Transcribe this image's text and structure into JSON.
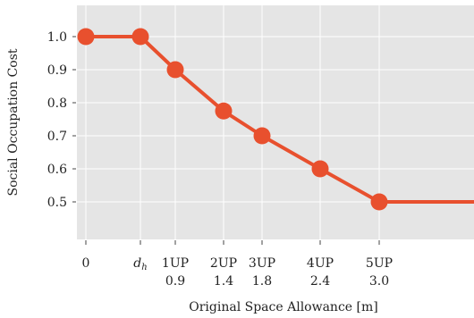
{
  "chart_data": {
    "type": "line",
    "title": "",
    "xlabel": "Original Space Allowance [m]",
    "ylabel": "Social Occupation Cost",
    "ylim": [
      0.4,
      1.1
    ],
    "grid": true,
    "legend": "none",
    "line_color": "#e8502e",
    "background_color": "#e5e5e5",
    "x_ticks": [
      {
        "value": 0.0,
        "label": "0",
        "sublabel": ""
      },
      {
        "value": 0.6,
        "label": "d_h",
        "sublabel": ""
      },
      {
        "value": 0.9,
        "label": "1UP",
        "sublabel": "0.9"
      },
      {
        "value": 1.4,
        "label": "2UP",
        "sublabel": "1.4"
      },
      {
        "value": 1.8,
        "label": "3UP",
        "sublabel": "1.8"
      },
      {
        "value": 2.4,
        "label": "4UP",
        "sublabel": "2.4"
      },
      {
        "value": 3.0,
        "label": "5UP",
        "sublabel": "3.0"
      }
    ],
    "y_ticks": [
      {
        "value": 0.5,
        "label": "0.5"
      },
      {
        "value": 0.6,
        "label": "0.6"
      },
      {
        "value": 0.7,
        "label": "0.7"
      },
      {
        "value": 0.8,
        "label": "0.8"
      },
      {
        "value": 0.9,
        "label": "0.9"
      },
      {
        "value": 1.0,
        "label": "1.0"
      }
    ],
    "series": [
      {
        "points": [
          {
            "x": 0.0,
            "y": 1.0
          },
          {
            "x": 0.6,
            "y": 1.0
          },
          {
            "x": 0.9,
            "y": 0.9
          },
          {
            "x": 1.4,
            "y": 0.775
          },
          {
            "x": 1.8,
            "y": 0.7
          },
          {
            "x": 2.4,
            "y": 0.6
          },
          {
            "x": 3.0,
            "y": 0.5
          }
        ],
        "extends_right_at": 0.5
      }
    ]
  }
}
